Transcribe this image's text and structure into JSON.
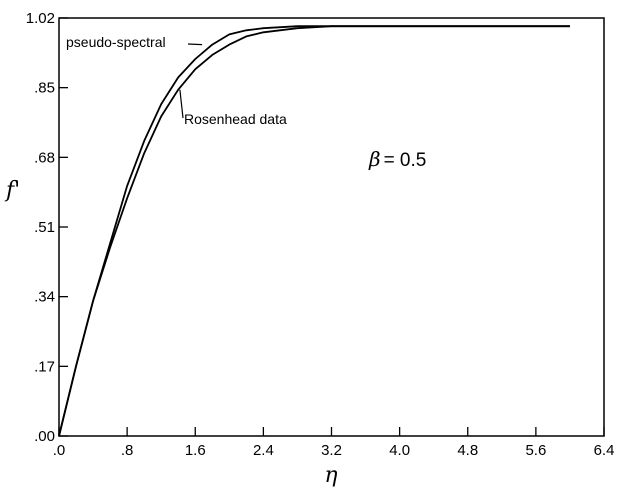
{
  "chart_data": {
    "type": "line",
    "title": "",
    "xlabel": "η",
    "ylabel": "f'",
    "xlim": [
      0,
      6.4
    ],
    "ylim": [
      0,
      1.02
    ],
    "xticks": [
      0,
      0.8,
      1.6,
      2.4,
      3.2,
      4.0,
      4.8,
      5.6,
      6.4
    ],
    "yticks": [
      0,
      0.17,
      0.34,
      0.51,
      0.68,
      0.85,
      1.02
    ],
    "xtick_labels": [
      ".0",
      ".8",
      "1.6",
      "2.4",
      "3.2",
      "4.0",
      "4.8",
      "5.6",
      "6.4"
    ],
    "ytick_labels": [
      ".00",
      ".17",
      ".34",
      ".51",
      ".68",
      ".85",
      "1.02"
    ],
    "grid": false,
    "series": [
      {
        "name": "pseudo-spectral",
        "x": [
          0,
          0.2,
          0.4,
          0.6,
          0.8,
          1.0,
          1.2,
          1.4,
          1.6,
          1.8,
          2.0,
          2.2,
          2.4,
          2.8,
          3.2,
          3.6,
          4.0,
          4.8,
          5.6,
          6.0
        ],
        "y": [
          0,
          0.17,
          0.33,
          0.47,
          0.61,
          0.72,
          0.81,
          0.875,
          0.92,
          0.955,
          0.98,
          0.99,
          0.995,
          1.0,
          1.0,
          1.0,
          1.0,
          1.0,
          1.0,
          1.0
        ]
      },
      {
        "name": "Rosenhead data",
        "x": [
          0,
          0.2,
          0.4,
          0.6,
          0.8,
          1.0,
          1.2,
          1.4,
          1.6,
          1.8,
          2.0,
          2.2,
          2.4,
          2.8,
          3.2,
          3.6,
          4.0,
          4.8,
          5.6,
          6.0
        ],
        "y": [
          0,
          0.17,
          0.33,
          0.46,
          0.58,
          0.69,
          0.78,
          0.845,
          0.895,
          0.93,
          0.955,
          0.975,
          0.985,
          0.995,
          1.0,
          1.0,
          1.0,
          1.0,
          1.0,
          1.0
        ]
      }
    ],
    "annotations": [
      {
        "text": "pseudo-spectral",
        "points_to": {
          "x": 1.68,
          "y": 0.955
        }
      },
      {
        "text": "Rosenhead data",
        "points_to": {
          "x": 1.42,
          "y": 0.845
        }
      },
      {
        "text": "β = 0.5",
        "greek": "β",
        "rest": "= 0.5",
        "at": {
          "x": 3.6,
          "y": 0.72
        }
      }
    ]
  }
}
